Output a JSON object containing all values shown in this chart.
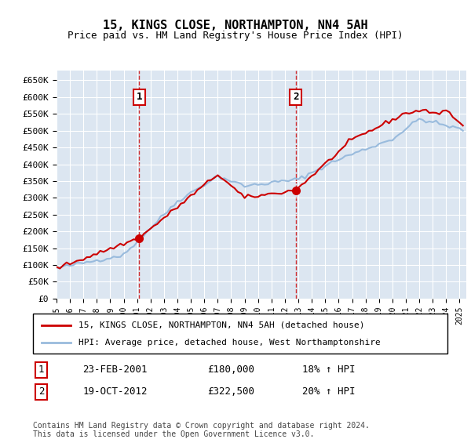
{
  "title": "15, KINGS CLOSE, NORTHAMPTON, NN4 5AH",
  "subtitle": "Price paid vs. HM Land Registry's House Price Index (HPI)",
  "ylabel_ticks": [
    "£0",
    "£50K",
    "£100K",
    "£150K",
    "£200K",
    "£250K",
    "£300K",
    "£350K",
    "£400K",
    "£450K",
    "£500K",
    "£550K",
    "£600K",
    "£650K"
  ],
  "ytick_values": [
    0,
    50000,
    100000,
    150000,
    200000,
    250000,
    300000,
    350000,
    400000,
    450000,
    500000,
    550000,
    600000,
    650000
  ],
  "ylim": [
    0,
    680000
  ],
  "background_color": "#dce6f1",
  "plot_bg": "#dce6f1",
  "line1_color": "#cc0000",
  "line2_color": "#99bbdd",
  "marker1_color": "#cc0000",
  "purchase1_date": 2001.15,
  "purchase1_price": 180000,
  "purchase2_date": 2012.8,
  "purchase2_price": 322500,
  "legend_label1": "15, KINGS CLOSE, NORTHAMPTON, NN4 5AH (detached house)",
  "legend_label2": "HPI: Average price, detached house, West Northamptonshire",
  "annotation1_label": "1",
  "annotation1_date": "23-FEB-2001",
  "annotation1_price": "£180,000",
  "annotation1_hpi": "18% ↑ HPI",
  "annotation2_label": "2",
  "annotation2_date": "19-OCT-2012",
  "annotation2_price": "£322,500",
  "annotation2_hpi": "20% ↑ HPI",
  "footer": "Contains HM Land Registry data © Crown copyright and database right 2024.\nThis data is licensed under the Open Government Licence v3.0.",
  "xmin": 1995,
  "xmax": 2025.5
}
